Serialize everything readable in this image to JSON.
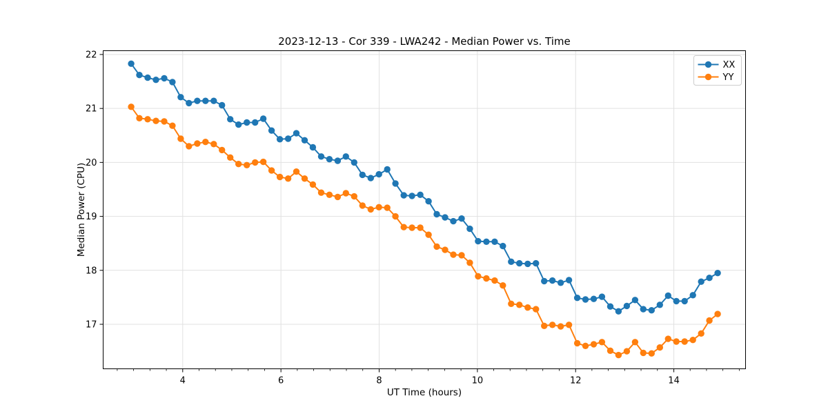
{
  "window": {
    "background": "#ffffff"
  },
  "chart_data": {
    "type": "line",
    "title": "2023-12-13 - Cor 339 - LWA242 - Median Power vs. Time",
    "xlabel": "UT Time (hours)",
    "ylabel": "Median Power (CPU)",
    "xlim": [
      2.38,
      15.46
    ],
    "ylim": [
      16.175,
      22.07
    ],
    "xticks": [
      4,
      6,
      8,
      10,
      12,
      14
    ],
    "yticks": [
      17,
      18,
      19,
      20,
      21,
      22
    ],
    "x_minor_step": 0.3333,
    "grid": true,
    "grid_color": "#e1e1e1",
    "spine_color": "#000000",
    "legend_position": "top-right",
    "legend_border_color": "#cccccc",
    "marker": "circle",
    "x": [
      2.95,
      3.118,
      3.286,
      3.455,
      3.623,
      3.791,
      3.959,
      4.127,
      4.296,
      4.464,
      4.632,
      4.8,
      4.968,
      5.137,
      5.305,
      5.473,
      5.641,
      5.809,
      5.978,
      6.146,
      6.314,
      6.482,
      6.65,
      6.819,
      6.987,
      7.155,
      7.323,
      7.491,
      7.66,
      7.828,
      7.996,
      8.164,
      8.332,
      8.501,
      8.669,
      8.837,
      9.005,
      9.173,
      9.342,
      9.51,
      9.678,
      9.846,
      10.014,
      10.183,
      10.351,
      10.519,
      10.687,
      10.855,
      11.024,
      11.192,
      11.36,
      11.528,
      11.696,
      11.865,
      12.033,
      12.201,
      12.369,
      12.537,
      12.706,
      12.874,
      13.042,
      13.21,
      13.378,
      13.547,
      13.715,
      13.883,
      14.051,
      14.219,
      14.388,
      14.556,
      14.724,
      14.892
    ],
    "series": [
      {
        "name": "XX",
        "color": "#1f77b4",
        "values": [
          21.83,
          21.62,
          21.57,
          21.53,
          21.56,
          21.49,
          21.21,
          21.1,
          21.14,
          21.14,
          21.14,
          21.06,
          20.8,
          20.7,
          20.74,
          20.74,
          20.81,
          20.59,
          20.43,
          20.44,
          20.54,
          20.41,
          20.28,
          20.11,
          20.06,
          20.03,
          20.11,
          20.0,
          19.77,
          19.71,
          19.78,
          19.87,
          19.61,
          19.39,
          19.38,
          19.4,
          19.28,
          19.04,
          18.98,
          18.91,
          18.96,
          18.77,
          18.54,
          18.53,
          18.53,
          18.45,
          18.16,
          18.13,
          18.12,
          18.13,
          17.8,
          17.81,
          17.77,
          17.82,
          17.49,
          17.46,
          17.47,
          17.51,
          17.33,
          17.24,
          17.34,
          17.45,
          17.28,
          17.26,
          17.36,
          17.53,
          17.43,
          17.43,
          17.54,
          17.79,
          17.86,
          17.95
        ]
      },
      {
        "name": "YY",
        "color": "#ff7f0e",
        "values": [
          21.03,
          20.82,
          20.8,
          20.77,
          20.76,
          20.68,
          20.44,
          20.3,
          20.35,
          20.38,
          20.34,
          20.23,
          20.09,
          19.97,
          19.95,
          20.0,
          20.01,
          19.85,
          19.73,
          19.7,
          19.83,
          19.7,
          19.59,
          19.44,
          19.4,
          19.36,
          19.43,
          19.37,
          19.2,
          19.13,
          19.17,
          19.16,
          19.0,
          18.8,
          18.79,
          18.79,
          18.66,
          18.44,
          18.38,
          18.29,
          18.28,
          18.14,
          17.89,
          17.85,
          17.81,
          17.72,
          17.38,
          17.36,
          17.31,
          17.28,
          16.97,
          16.99,
          16.96,
          16.99,
          16.65,
          16.6,
          16.63,
          16.67,
          16.51,
          16.43,
          16.5,
          16.67,
          16.47,
          16.46,
          16.57,
          16.73,
          16.68,
          16.68,
          16.71,
          16.83,
          17.07,
          17.19
        ]
      }
    ]
  },
  "legend": {
    "entries": [
      {
        "label": "XX",
        "color": "#1f77b4"
      },
      {
        "label": "YY",
        "color": "#ff7f0e"
      }
    ]
  }
}
